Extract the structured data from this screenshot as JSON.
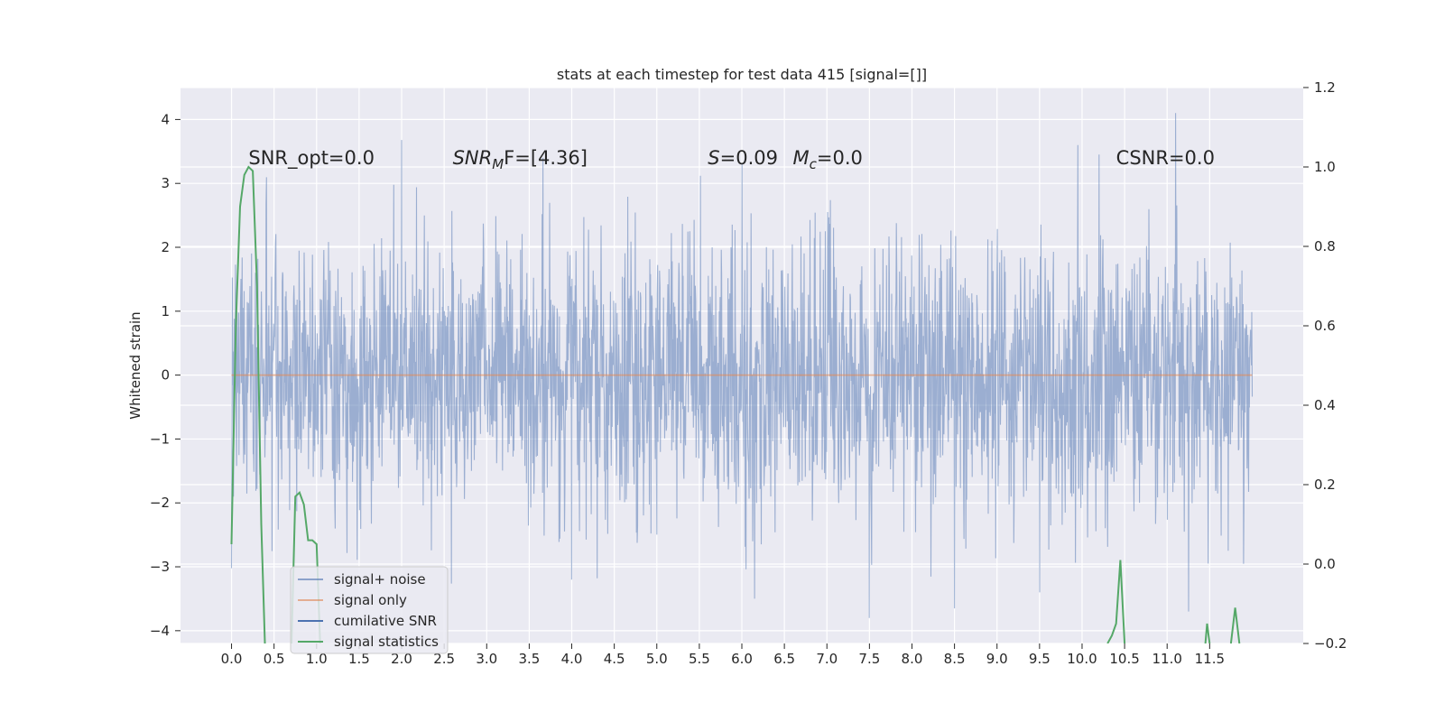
{
  "chart_data": {
    "type": "line",
    "title": "stats at each timestep for test data 415 [signal=[]]",
    "ylabel": "Whitened strain",
    "x_ticks": [
      "0.0",
      "0.5",
      "1.0",
      "1.5",
      "2.0",
      "2.5",
      "3.0",
      "3.5",
      "4.0",
      "4.5",
      "5.0",
      "5.5",
      "6.0",
      "6.5",
      "7.0",
      "7.5",
      "8.0",
      "8.5",
      "9.0",
      "9.5",
      "10.0",
      "10.5",
      "11.0",
      "11.5"
    ],
    "xlim": [
      -0.6,
      12.6
    ],
    "ylim": [
      -4.2,
      4.5
    ],
    "y_ticks": [
      "4",
      "3",
      "2",
      "1",
      "0",
      "−1",
      "−2",
      "−3",
      "−4"
    ],
    "y2lim": [
      -0.2,
      1.2
    ],
    "y2_ticks": [
      "1.2",
      "1.0",
      "0.8",
      "0.6",
      "0.4",
      "0.2",
      "0.0",
      "−0.2"
    ],
    "grid": true,
    "annotations": [
      {
        "id": "snr-opt",
        "x": 0.2,
        "y": 3.3,
        "text": "SNR_opt=0.0"
      },
      {
        "id": "snr-mf",
        "x": 2.6,
        "y": 3.3,
        "text": "SNR_MF=[4.36]",
        "main": "SNR",
        "sub": "M",
        "rest": "F=[4.36]"
      },
      {
        "id": "s-stat",
        "x": 5.6,
        "y": 3.3,
        "text": "S=0.09",
        "main": "S",
        "rest": "=0.09"
      },
      {
        "id": "mc-stat",
        "x": 6.6,
        "y": 3.3,
        "text": "M_c=0.0",
        "main": "M",
        "sub": "c",
        "rest": "=0.0"
      },
      {
        "id": "csnr",
        "x": 10.4,
        "y": 3.3,
        "text": "CSNR=0.0"
      }
    ],
    "series": [
      {
        "name": "signal+ noise",
        "color": "#4c72b0",
        "axis": "left",
        "description": "dense whitened noise trace, t = 0.0 to 12.0, mostly within ±2 with spikes up to ~4.1 and down to ~-3.8",
        "x_range": [
          0.0,
          12.0
        ],
        "spikes": [
          {
            "x": 2.0,
            "y": 3.68
          },
          {
            "x": 10.2,
            "y": 3.45
          },
          {
            "x": 11.1,
            "y": 4.1
          },
          {
            "x": 9.5,
            "y": 3.4
          },
          {
            "x": 9.95,
            "y": 3.6
          },
          {
            "x": 6.0,
            "y": 3.3
          },
          {
            "x": 7.5,
            "y": -3.8
          },
          {
            "x": 8.5,
            "y": -3.65
          },
          {
            "x": 11.25,
            "y": -3.7
          },
          {
            "x": 6.15,
            "y": -3.5
          },
          {
            "x": 9.5,
            "y": -3.4
          },
          {
            "x": 4.0,
            "y": -3.2
          }
        ]
      },
      {
        "name": "signal only",
        "color": "#dd8452",
        "axis": "left",
        "x": [
          0.0,
          12.0
        ],
        "y": [
          0.0,
          0.0
        ]
      },
      {
        "name": "cumilative SNR",
        "color": "#4c72b0",
        "axis": "left",
        "x": [],
        "y": []
      },
      {
        "name": "signal statistics",
        "color": "#55a868",
        "axis": "right",
        "x": [
          0.0,
          0.05,
          0.1,
          0.15,
          0.2,
          0.25,
          0.3,
          0.35,
          0.4,
          0.7,
          0.75,
          0.8,
          0.85,
          0.9,
          0.95,
          1.0,
          1.05
        ],
        "y": [
          0.05,
          0.6,
          0.9,
          0.98,
          1.0,
          0.99,
          0.7,
          0.1,
          -0.25,
          -0.25,
          0.17,
          0.18,
          0.15,
          0.06,
          0.06,
          0.05,
          -0.25
        ],
        "tail_segments": [
          {
            "x": [
              10.3,
              10.35,
              10.4,
              10.45,
              10.5
            ],
            "y": [
              -0.2,
              -0.18,
              -0.15,
              0.01,
              -0.2
            ]
          },
          {
            "x": [
              11.45,
              11.47,
              11.5
            ],
            "y": [
              -0.2,
              -0.15,
              -0.2
            ]
          },
          {
            "x": [
              11.75,
              11.8,
              11.85
            ],
            "y": [
              -0.2,
              -0.11,
              -0.2
            ]
          }
        ]
      }
    ],
    "legend": {
      "position": "lower-left",
      "items": [
        "signal+ noise",
        "signal only",
        "cumilative SNR",
        "signal statistics"
      ]
    }
  }
}
